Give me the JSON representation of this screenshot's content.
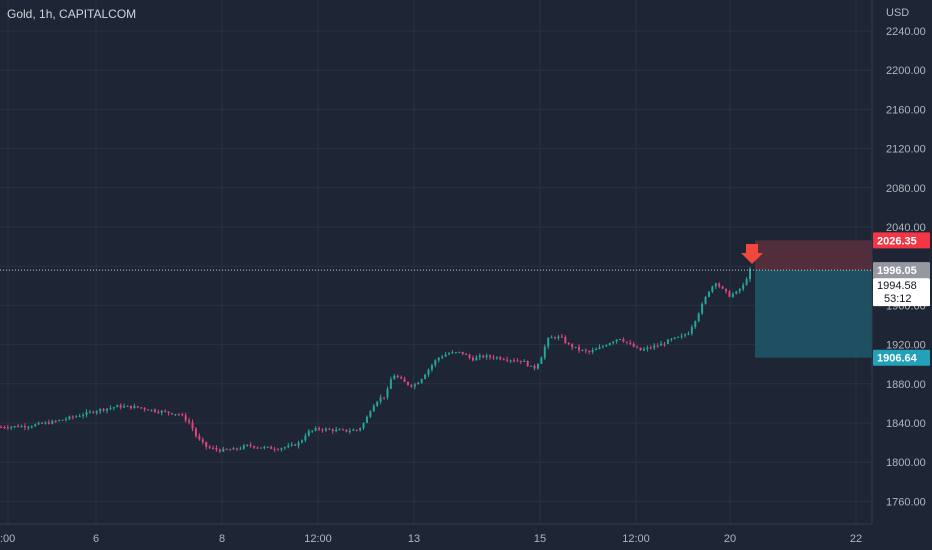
{
  "header": {
    "title": "Gold, 1h, CAPITALCOM"
  },
  "axis": {
    "currency": "USD"
  },
  "colors": {
    "background": "#1e2534",
    "grid": "#2a3142",
    "up": "#26a69a",
    "down": "#e0457b",
    "stop_zone": "#5c2f3e",
    "target_zone": "#1f5566",
    "stop_tag": "#f23645",
    "target_tag": "#22a1b8",
    "last_tag": "#9598a1",
    "arrow": "#f0483e"
  },
  "chart_data": {
    "type": "candlestick",
    "title": "Gold, 1h, CAPITALCOM",
    "ylabel": "USD",
    "ylim": [
      1740,
      2260
    ],
    "y_ticks": [
      2240,
      2200,
      2160,
      2120,
      2080,
      2040,
      2000,
      1960,
      1920,
      1880,
      1840,
      1800,
      1760
    ],
    "y_tick_labels": [
      "2240.00",
      "2200.00",
      "2160.00",
      "2120.00",
      "2080.00",
      "2040.00",
      "",
      "1960.00",
      "1920.00",
      "1880.00",
      "1840.00",
      "1800.00",
      "1760.00"
    ],
    "x_ticks": [
      ":00",
      "6",
      "8",
      "12:00",
      "13",
      "15",
      "12:00",
      "20",
      "22"
    ],
    "grid": true,
    "close_path": [
      [
        0,
        1836
      ],
      [
        8,
        1837
      ],
      [
        15,
        1841
      ],
      [
        22,
        1847
      ],
      [
        28,
        1853
      ],
      [
        34,
        1857
      ],
      [
        40,
        1856
      ],
      [
        44,
        1853
      ],
      [
        48,
        1851
      ],
      [
        52,
        1849
      ],
      [
        55,
        1840
      ],
      [
        57,
        1825
      ],
      [
        60,
        1815
      ],
      [
        64,
        1812
      ],
      [
        68,
        1813
      ],
      [
        72,
        1817
      ],
      [
        76,
        1815
      ],
      [
        80,
        1814
      ],
      [
        84,
        1816
      ],
      [
        87,
        1820
      ],
      [
        89,
        1830
      ],
      [
        92,
        1834
      ],
      [
        96,
        1833
      ],
      [
        100,
        1832
      ],
      [
        104,
        1833
      ],
      [
        106,
        1842
      ],
      [
        108,
        1857
      ],
      [
        110,
        1865
      ],
      [
        112,
        1868
      ],
      [
        114,
        1890
      ],
      [
        116,
        1885
      ],
      [
        118,
        1880
      ],
      [
        120,
        1878
      ],
      [
        122,
        1884
      ],
      [
        124,
        1893
      ],
      [
        127,
        1906
      ],
      [
        130,
        1911
      ],
      [
        134,
        1912
      ],
      [
        137,
        1905
      ],
      [
        140,
        1908
      ],
      [
        144,
        1907
      ],
      [
        148,
        1905
      ],
      [
        152,
        1903
      ],
      [
        155,
        1895
      ],
      [
        157,
        1905
      ],
      [
        159,
        1925
      ],
      [
        161,
        1928
      ],
      [
        163,
        1927
      ],
      [
        165,
        1920
      ],
      [
        168,
        1915
      ],
      [
        171,
        1912
      ],
      [
        174,
        1916
      ],
      [
        177,
        1922
      ],
      [
        180,
        1927
      ],
      [
        183,
        1920
      ],
      [
        186,
        1914
      ],
      [
        189,
        1917
      ],
      [
        192,
        1920
      ],
      [
        195,
        1925
      ],
      [
        198,
        1928
      ],
      [
        200,
        1932
      ],
      [
        202,
        1945
      ],
      [
        204,
        1960
      ],
      [
        206,
        1975
      ],
      [
        208,
        1984
      ],
      [
        210,
        1976
      ],
      [
        212,
        1970
      ],
      [
        214,
        1973
      ],
      [
        216,
        1980
      ],
      [
        217,
        1988
      ],
      [
        218,
        1996
      ]
    ],
    "path_domain": [
      0,
      218
    ],
    "last_price": 1996.05,
    "trade": {
      "entry": 1996.05,
      "stop": 2026.35,
      "target": 1906.64
    },
    "last_tag": "1996.05",
    "stop_tag": "2026.35",
    "target_tag": "1906.64",
    "bid_tag": {
      "price": "1994.58",
      "countdown": "53:12"
    }
  }
}
